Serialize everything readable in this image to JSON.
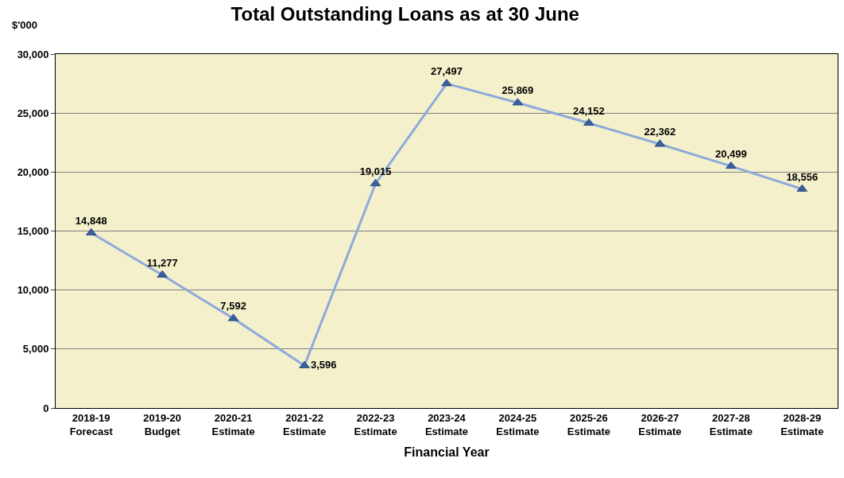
{
  "chart_data": {
    "type": "line",
    "title": "Total Outstanding Loans as at 30 June",
    "xlabel": "Financial Year",
    "ylabel": "$'000",
    "categories": [
      "2018-19\nForecast",
      "2019-20\nBudget",
      "2020-21\nEstimate",
      "2021-22\nEstimate",
      "2022-23\nEstimate",
      "2023-24\nEstimate",
      "2024-25\nEstimate",
      "2025-26\nEstimate",
      "2026-27\nEstimate",
      "2027-28\nEstimate",
      "2028-29\nEstimate"
    ],
    "series": [
      {
        "color": "#8eaadb",
        "values": [
          14848,
          11277,
          7592,
          3596,
          19015,
          27497,
          25869,
          24152,
          22362,
          20499,
          18556
        ],
        "value_labels": [
          "14,848",
          "11,277",
          "7,592",
          "3,596",
          "19,015",
          "27,497",
          "25,869",
          "24,152",
          "22,362",
          "20,499",
          "18,556"
        ]
      }
    ],
    "ylim": [
      0,
      30000
    ],
    "yticks": [
      {
        "value": 0,
        "label": "0"
      },
      {
        "value": 5000,
        "label": "5,000"
      },
      {
        "value": 10000,
        "label": "10,000"
      },
      {
        "value": 15000,
        "label": "15,000"
      },
      {
        "value": 20000,
        "label": "20,000"
      },
      {
        "value": 25000,
        "label": "25,000"
      },
      {
        "value": 30000,
        "label": "30,000"
      }
    ],
    "grid": "y",
    "marker": "triangle",
    "line_style": "solid"
  }
}
